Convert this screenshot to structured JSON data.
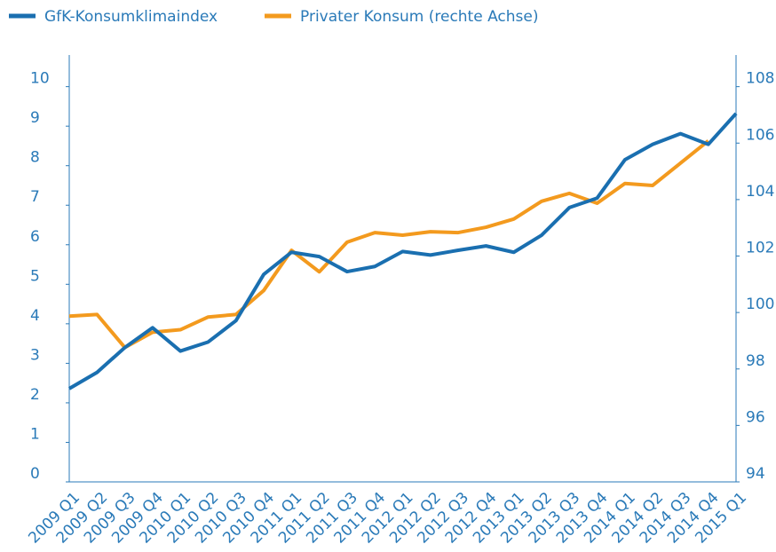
{
  "chart_data": {
    "type": "line",
    "categories": [
      "2009 Q1",
      "2009 Q2",
      "2009 Q3",
      "2009 Q4",
      "2010 Q1",
      "2010 Q2",
      "2010 Q3",
      "2010 Q4",
      "2011 Q1",
      "2011 Q2",
      "2011 Q3",
      "2011 Q4",
      "2012 Q1",
      "2012 Q2",
      "2012 Q3",
      "2012 Q4",
      "2013 Q1",
      "2013 Q2",
      "2013 Q3",
      "2013 Q4",
      "2014 Q1",
      "2014 Q2",
      "2014 Q3",
      "2014 Q4",
      "2015 Q1"
    ],
    "series": [
      {
        "name": "GfK-Konsumklimaindex",
        "color": "#1a6fb0",
        "values": [
          2.36,
          2.77,
          3.4,
          3.9,
          3.31,
          3.54,
          4.08,
          5.25,
          5.81,
          5.7,
          5.32,
          5.45,
          5.83,
          5.74,
          5.86,
          5.97,
          5.81,
          6.24,
          6.94,
          7.18,
          8.15,
          8.54,
          8.81,
          8.54,
          9.32
        ]
      },
      {
        "name": "Privater Konsum (rechte Achse)",
        "color": "#f39a1e",
        "axis": "y2",
        "values": [
          99.87,
          99.93,
          98.76,
          99.3,
          99.39,
          99.84,
          99.93,
          100.78,
          102.2,
          101.44,
          102.49,
          102.83,
          102.74,
          102.86,
          102.83,
          103.02,
          103.31,
          103.94,
          104.22,
          103.87,
          104.57,
          104.5,
          105.29,
          106.08,
          null
        ]
      }
    ],
    "ylim": [
      0,
      10.8
    ],
    "yticks": [
      0,
      1,
      2,
      3,
      4,
      5,
      6,
      7,
      8,
      9,
      10
    ],
    "y2lim": [
      94,
      109.12
    ],
    "y2ticks": [
      94,
      96,
      98,
      100,
      102,
      104,
      106,
      108
    ],
    "legend": "top-left"
  }
}
